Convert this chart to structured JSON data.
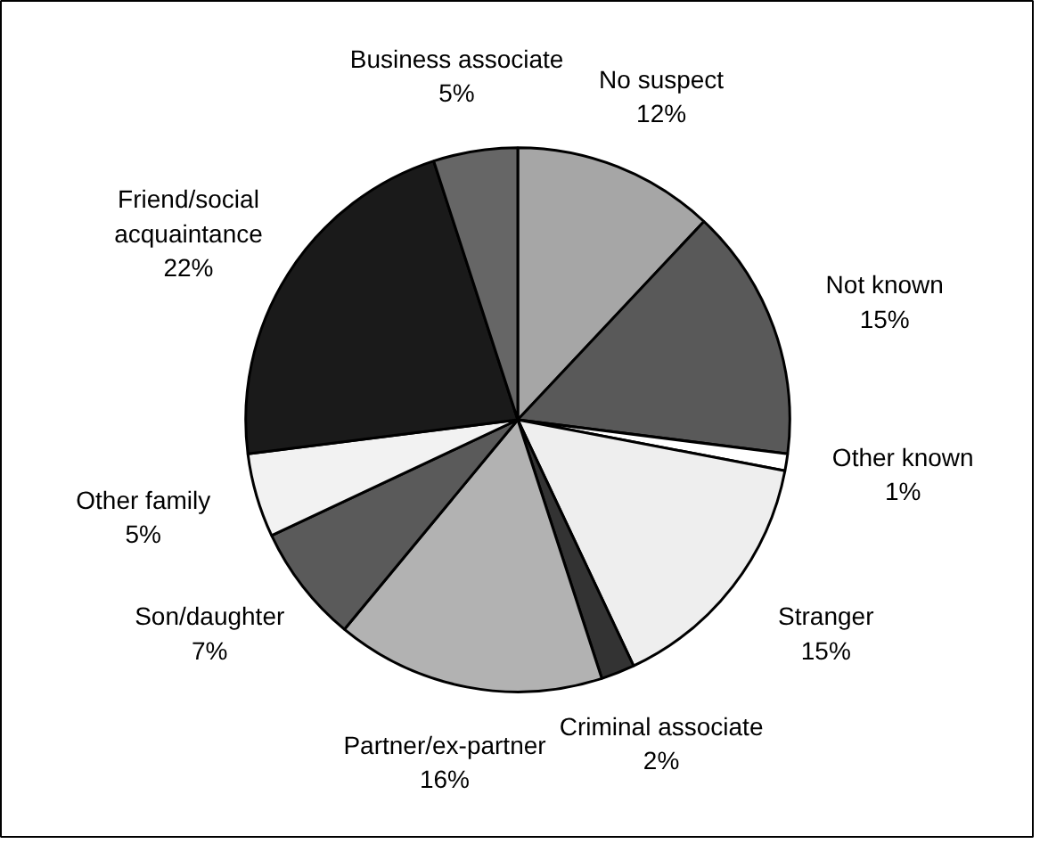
{
  "chart_data": {
    "type": "pie",
    "categories": [
      "No suspect",
      "Not known",
      "Other known",
      "Stranger",
      "Criminal associate",
      "Partner/ex-partner",
      "Son/daughter",
      "Other family",
      "Friend/social\nacquaintance",
      "Business associate"
    ],
    "values": [
      12,
      15,
      1,
      15,
      2,
      16,
      7,
      5,
      22,
      5
    ],
    "value_labels": [
      "12%",
      "15%",
      "1%",
      "15%",
      "2%",
      "16%",
      "7%",
      "5%",
      "22%",
      "5%"
    ],
    "colors": [
      "#a6a6a6",
      "#595959",
      "#ffffff",
      "#eeeeee",
      "#333333",
      "#b2b2b2",
      "#5a5a5a",
      "#f2f2f2",
      "#1a1a1a",
      "#666666"
    ]
  }
}
